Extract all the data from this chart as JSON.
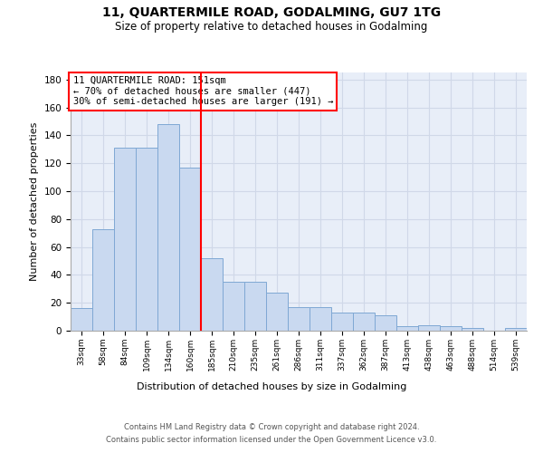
{
  "title": "11, QUARTERMILE ROAD, GODALMING, GU7 1TG",
  "subtitle": "Size of property relative to detached houses in Godalming",
  "xlabel": "Distribution of detached houses by size in Godalming",
  "ylabel": "Number of detached properties",
  "categories": [
    "33sqm",
    "58sqm",
    "84sqm",
    "109sqm",
    "134sqm",
    "160sqm",
    "185sqm",
    "210sqm",
    "235sqm",
    "261sqm",
    "286sqm",
    "311sqm",
    "337sqm",
    "362sqm",
    "387sqm",
    "413sqm",
    "438sqm",
    "463sqm",
    "488sqm",
    "514sqm",
    "539sqm"
  ],
  "values": [
    16,
    73,
    131,
    131,
    148,
    117,
    52,
    35,
    35,
    27,
    17,
    17,
    13,
    13,
    11,
    3,
    4,
    3,
    2,
    0,
    2
  ],
  "bar_color": "#c9d9f0",
  "bar_edge_color": "#7fa8d4",
  "grid_color": "#d0d8e8",
  "bg_color": "#e8eef8",
  "property_line_x": 5.5,
  "annotation_text_line1": "11 QUARTERMILE ROAD: 151sqm",
  "annotation_text_line2": "← 70% of detached houses are smaller (447)",
  "annotation_text_line3": "30% of semi-detached houses are larger (191) →",
  "annotation_box_color": "white",
  "annotation_box_edge": "red",
  "red_line_color": "red",
  "ylim": [
    0,
    185
  ],
  "yticks": [
    0,
    20,
    40,
    60,
    80,
    100,
    120,
    140,
    160,
    180
  ],
  "footer_line1": "Contains HM Land Registry data © Crown copyright and database right 2024.",
  "footer_line2": "Contains public sector information licensed under the Open Government Licence v3.0."
}
